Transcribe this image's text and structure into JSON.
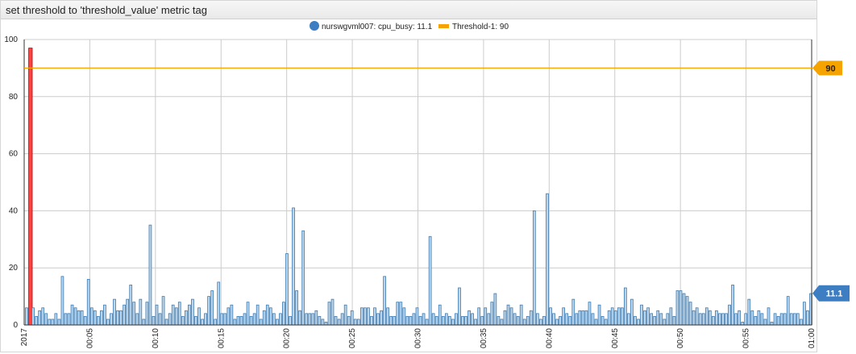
{
  "widget": {
    "title": "set threshold to 'threshold_value' metric tag"
  },
  "colors": {
    "series_fill": "#bcd6ec",
    "series_stroke": "#3f7bb1",
    "series_marker": "#3d7dc2",
    "threshold": "#f5a300",
    "alert_fill": "#ff4444",
    "alert_stroke": "#b30000",
    "grid": "#cccccc",
    "value_callout": "#3d7dc2"
  },
  "chart_data": {
    "type": "bar",
    "series": [
      {
        "name": "nurswgvml007: cpu_busy",
        "legend_value": "11.1",
        "last_value_label": "11.1",
        "values": [
          6,
          97,
          6,
          3,
          5,
          6,
          4,
          2,
          2,
          4,
          2,
          17,
          4,
          4,
          7,
          6,
          5,
          5,
          3,
          16,
          6,
          5,
          3,
          5,
          7,
          2,
          4,
          9,
          5,
          5,
          7,
          9,
          14,
          8,
          4,
          9,
          2,
          8,
          35,
          3,
          7,
          4,
          10,
          2,
          4,
          7,
          6,
          8,
          3,
          5,
          7,
          9,
          3,
          6,
          2,
          4,
          10,
          12,
          2,
          15,
          4,
          4,
          6,
          7,
          2,
          3,
          3,
          4,
          8,
          3,
          4,
          7,
          2,
          5,
          7,
          6,
          4,
          2,
          4,
          8,
          25,
          3,
          41,
          12,
          5,
          33,
          4,
          4,
          4,
          5,
          3,
          2,
          1,
          8,
          9,
          3,
          2,
          4,
          7,
          3,
          5,
          2,
          2,
          6,
          6,
          6,
          3,
          6,
          4,
          5,
          17,
          6,
          3,
          3,
          8,
          8,
          6,
          3,
          3,
          4,
          6,
          3,
          4,
          2,
          31,
          4,
          3,
          7,
          3,
          4,
          3,
          2,
          4,
          13,
          3,
          3,
          5,
          4,
          2,
          6,
          3,
          6,
          4,
          8,
          11,
          3,
          2,
          5,
          7,
          6,
          4,
          3,
          7,
          2,
          3,
          5,
          40,
          4,
          2,
          3,
          46,
          6,
          4,
          2,
          3,
          6,
          4,
          3,
          9,
          4,
          5,
          5,
          5,
          8,
          4,
          2,
          7,
          3,
          2,
          5,
          6,
          5,
          6,
          6,
          13,
          4,
          9,
          3,
          2,
          7,
          5,
          6,
          4,
          3,
          5,
          4,
          2,
          4,
          6,
          3,
          12,
          12,
          11,
          10,
          8,
          5,
          6,
          4,
          4,
          6,
          5,
          3,
          5,
          4,
          4,
          4,
          7,
          14,
          4,
          5,
          1,
          4,
          9,
          5,
          3,
          5,
          4,
          2,
          6,
          1,
          4,
          3,
          4,
          4,
          10,
          4,
          4,
          4,
          2,
          8,
          5,
          11
        ]
      }
    ],
    "threshold": {
      "name": "Threshold-1",
      "value": 90,
      "label": "90"
    },
    "alert_indices": [
      1
    ],
    "x_range_minutes": [
      0,
      60
    ],
    "x_ticks": [
      {
        "minute": 0,
        "label": "2017"
      },
      {
        "minute": 5,
        "label": "00:05"
      },
      {
        "minute": 10,
        "label": "00:10"
      },
      {
        "minute": 15,
        "label": "00:15"
      },
      {
        "minute": 20,
        "label": "00:20"
      },
      {
        "minute": 25,
        "label": "00:25"
      },
      {
        "minute": 30,
        "label": "00:30"
      },
      {
        "minute": 35,
        "label": "00:35"
      },
      {
        "minute": 40,
        "label": "00:40"
      },
      {
        "minute": 45,
        "label": "00:45"
      },
      {
        "minute": 50,
        "label": "00:50"
      },
      {
        "minute": 55,
        "label": "00:55"
      },
      {
        "minute": 60,
        "label": "01:00"
      }
    ],
    "ylim": [
      0,
      100
    ],
    "y_ticks": [
      0,
      20,
      40,
      60,
      80,
      100
    ],
    "grid": true,
    "legend_position": "top-center"
  }
}
